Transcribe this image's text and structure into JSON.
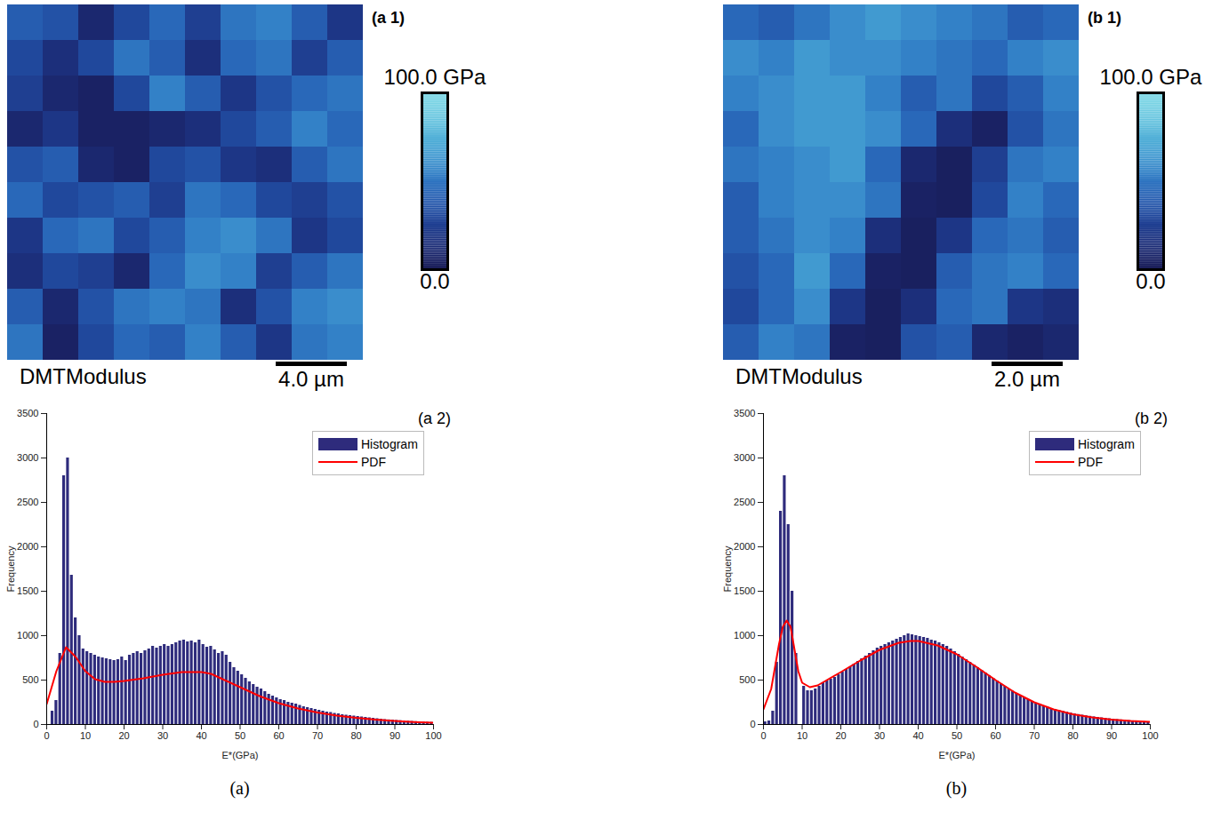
{
  "chart_data": [
    {
      "type": "heatmap",
      "panel": "(a 1)",
      "title": "DMTModulus",
      "tick_labels": false,
      "cells": [
        [
          40,
          35,
          10,
          30,
          45,
          25,
          50,
          55,
          40,
          20
        ],
        [
          30,
          15,
          30,
          50,
          40,
          15,
          45,
          50,
          25,
          40
        ],
        [
          25,
          10,
          5,
          30,
          55,
          40,
          20,
          35,
          45,
          50
        ],
        [
          10,
          20,
          5,
          5,
          10,
          15,
          30,
          40,
          55,
          45
        ],
        [
          35,
          40,
          10,
          5,
          30,
          35,
          20,
          15,
          40,
          50
        ],
        [
          45,
          30,
          35,
          40,
          25,
          50,
          45,
          30,
          25,
          35
        ],
        [
          20,
          45,
          50,
          30,
          40,
          55,
          60,
          50,
          20,
          30
        ],
        [
          15,
          30,
          25,
          10,
          45,
          60,
          55,
          25,
          40,
          50
        ],
        [
          40,
          10,
          35,
          50,
          55,
          50,
          15,
          35,
          55,
          60
        ],
        [
          50,
          5,
          30,
          45,
          40,
          55,
          40,
          20,
          50,
          55
        ]
      ],
      "colorbar": {
        "range": [
          0,
          100
        ],
        "ticks": [
          {
            "value": 100,
            "label": "100.0 GPa"
          },
          {
            "value": 0,
            "label": "0.0"
          }
        ]
      },
      "extent_um": 20,
      "scale_bar": {
        "value": 4.0,
        "label": "4.0 µm"
      }
    },
    {
      "type": "heatmap",
      "panel": "(b 1)",
      "title": "DMTModulus",
      "tick_labels": false,
      "cells": [
        [
          45,
          40,
          50,
          60,
          65,
          60,
          55,
          50,
          40,
          45
        ],
        [
          60,
          55,
          65,
          60,
          60,
          55,
          50,
          45,
          55,
          60
        ],
        [
          55,
          60,
          65,
          65,
          55,
          40,
          50,
          30,
          40,
          55
        ],
        [
          45,
          60,
          65,
          65,
          60,
          45,
          15,
          5,
          35,
          50
        ],
        [
          50,
          55,
          60,
          65,
          45,
          10,
          3,
          25,
          50,
          55
        ],
        [
          40,
          55,
          60,
          60,
          50,
          5,
          3,
          30,
          55,
          45
        ],
        [
          40,
          50,
          60,
          55,
          15,
          3,
          20,
          45,
          50,
          40
        ],
        [
          35,
          45,
          65,
          45,
          5,
          3,
          40,
          50,
          55,
          45
        ],
        [
          30,
          45,
          60,
          20,
          3,
          15,
          45,
          50,
          20,
          15
        ],
        [
          40,
          55,
          50,
          5,
          3,
          35,
          40,
          10,
          5,
          10
        ]
      ],
      "colorbar": {
        "range": [
          0,
          100
        ],
        "ticks": [
          {
            "value": 100,
            "label": "100.0 GPa"
          },
          {
            "value": 0,
            "label": "0.0"
          }
        ]
      },
      "extent_um": 10,
      "scale_bar": {
        "value": 2.0,
        "label": "2.0 µm"
      }
    },
    {
      "type": "histogram",
      "panel": "(a 2)",
      "caption": "(a)",
      "xlabel": "E*(GPa)",
      "ylabel": "Frequency",
      "xlim": [
        0,
        100
      ],
      "ylim": [
        0,
        3500
      ],
      "xticks": [
        0,
        10,
        20,
        30,
        40,
        50,
        60,
        70,
        80,
        90,
        100
      ],
      "yticks": [
        0,
        500,
        1000,
        1500,
        2000,
        2500,
        3000,
        3500
      ],
      "legend": "northeast",
      "series": [
        {
          "name": "Histogram",
          "type": "bar",
          "color": "#2e2b7c",
          "bins": [
            0,
            1,
            2,
            3,
            4,
            5,
            6,
            7,
            8,
            9,
            10,
            11,
            12,
            13,
            14,
            15,
            16,
            17,
            18,
            19,
            20,
            21,
            22,
            23,
            24,
            25,
            26,
            27,
            28,
            29,
            30,
            31,
            32,
            33,
            34,
            35,
            36,
            37,
            38,
            39,
            40,
            41,
            42,
            43,
            44,
            45,
            46,
            47,
            48,
            49,
            50,
            51,
            52,
            53,
            54,
            55,
            56,
            57,
            58,
            59,
            60,
            61,
            62,
            63,
            64,
            65,
            66,
            67,
            68,
            69,
            70,
            71,
            72,
            73,
            74,
            75,
            76,
            77,
            78,
            79,
            80,
            81,
            82,
            83,
            84,
            85,
            86,
            87,
            88,
            89,
            90,
            91,
            92,
            93,
            94,
            95,
            96,
            97,
            98,
            99,
            100
          ],
          "values": [
            0,
            150,
            270,
            800,
            2800,
            3000,
            1680,
            1200,
            1000,
            850,
            820,
            800,
            780,
            760,
            750,
            740,
            730,
            720,
            730,
            760,
            720,
            780,
            800,
            820,
            800,
            830,
            850,
            880,
            860,
            880,
            900,
            880,
            900,
            920,
            940,
            950,
            930,
            940,
            920,
            950,
            900,
            870,
            880,
            840,
            800,
            820,
            780,
            700,
            640,
            600,
            560,
            520,
            480,
            450,
            420,
            400,
            370,
            340,
            320,
            300,
            280,
            270,
            250,
            240,
            230,
            215,
            200,
            190,
            180,
            170,
            160,
            150,
            140,
            135,
            125,
            120,
            110,
            105,
            100,
            95,
            90,
            85,
            80,
            75,
            70,
            65,
            60,
            55,
            52,
            50,
            46,
            43,
            40,
            37,
            35,
            32,
            30,
            28,
            26,
            24
          ]
        },
        {
          "name": "PDF",
          "type": "line",
          "color": "#ff0000",
          "x": [
            0,
            2.5,
            5,
            7.5,
            10,
            12.5,
            15,
            17.5,
            20,
            25,
            30,
            35,
            40,
            42.5,
            45,
            50,
            55,
            60,
            65,
            70,
            75,
            80,
            85,
            90,
            95,
            100
          ],
          "values": [
            230,
            600,
            870,
            760,
            600,
            510,
            480,
            480,
            490,
            520,
            560,
            590,
            590,
            570,
            520,
            420,
            320,
            240,
            180,
            135,
            100,
            75,
            55,
            40,
            28,
            20
          ]
        }
      ]
    },
    {
      "type": "histogram",
      "panel": "(b 2)",
      "caption": "(b)",
      "xlabel": "E*(GPa)",
      "ylabel": "Frequency",
      "xlim": [
        0,
        100
      ],
      "ylim": [
        0,
        3500
      ],
      "xticks": [
        0,
        10,
        20,
        30,
        40,
        50,
        60,
        70,
        80,
        90,
        100
      ],
      "yticks": [
        0,
        500,
        1000,
        1500,
        2000,
        2500,
        3000,
        3500
      ],
      "legend": "northeast",
      "series": [
        {
          "name": "Histogram",
          "type": "bar",
          "color": "#2e2b7c",
          "bins": [
            0,
            1,
            2,
            3,
            4,
            5,
            6,
            7,
            8,
            9,
            10,
            11,
            12,
            13,
            14,
            15,
            16,
            17,
            18,
            19,
            20,
            21,
            22,
            23,
            24,
            25,
            26,
            27,
            28,
            29,
            30,
            31,
            32,
            33,
            34,
            35,
            36,
            37,
            38,
            39,
            40,
            41,
            42,
            43,
            44,
            45,
            46,
            47,
            48,
            49,
            50,
            51,
            52,
            53,
            54,
            55,
            56,
            57,
            58,
            59,
            60,
            61,
            62,
            63,
            64,
            65,
            66,
            67,
            68,
            69,
            70,
            71,
            72,
            73,
            74,
            75,
            76,
            77,
            78,
            79,
            80,
            81,
            82,
            83,
            84,
            85,
            86,
            87,
            88,
            89,
            90,
            91,
            92,
            93,
            94,
            95,
            96,
            97,
            98,
            99,
            100
          ],
          "values": [
            30,
            40,
            150,
            700,
            2400,
            2800,
            2250,
            1500,
            800,
            0,
            430,
            380,
            380,
            400,
            430,
            470,
            490,
            510,
            530,
            560,
            590,
            620,
            650,
            680,
            710,
            740,
            770,
            800,
            830,
            860,
            880,
            900,
            920,
            940,
            960,
            980,
            1000,
            1020,
            1010,
            1000,
            990,
            980,
            970,
            950,
            940,
            920,
            900,
            880,
            850,
            820,
            790,
            760,
            730,
            700,
            670,
            640,
            610,
            580,
            550,
            520,
            490,
            460,
            430,
            400,
            375,
            350,
            325,
            300,
            280,
            260,
            240,
            225,
            210,
            195,
            180,
            170,
            160,
            150,
            140,
            130,
            120,
            112,
            105,
            98,
            92,
            86,
            80,
            75,
            70,
            65,
            60,
            56,
            52,
            48,
            44,
            41,
            38,
            35,
            32,
            30
          ]
        },
        {
          "name": "PDF",
          "type": "line",
          "color": "#ff0000",
          "x": [
            0,
            2,
            4,
            5,
            6,
            7,
            8,
            9,
            10,
            12,
            14,
            16,
            20,
            25,
            30,
            35,
            38,
            40,
            45,
            50,
            55,
            60,
            65,
            70,
            75,
            80,
            85,
            90,
            95,
            100
          ],
          "values": [
            170,
            400,
            900,
            1100,
            1170,
            1100,
            850,
            600,
            470,
            420,
            440,
            490,
            590,
            720,
            840,
            920,
            940,
            940,
            890,
            790,
            650,
            500,
            360,
            250,
            170,
            115,
            80,
            55,
            40,
            30
          ]
        }
      ]
    }
  ]
}
